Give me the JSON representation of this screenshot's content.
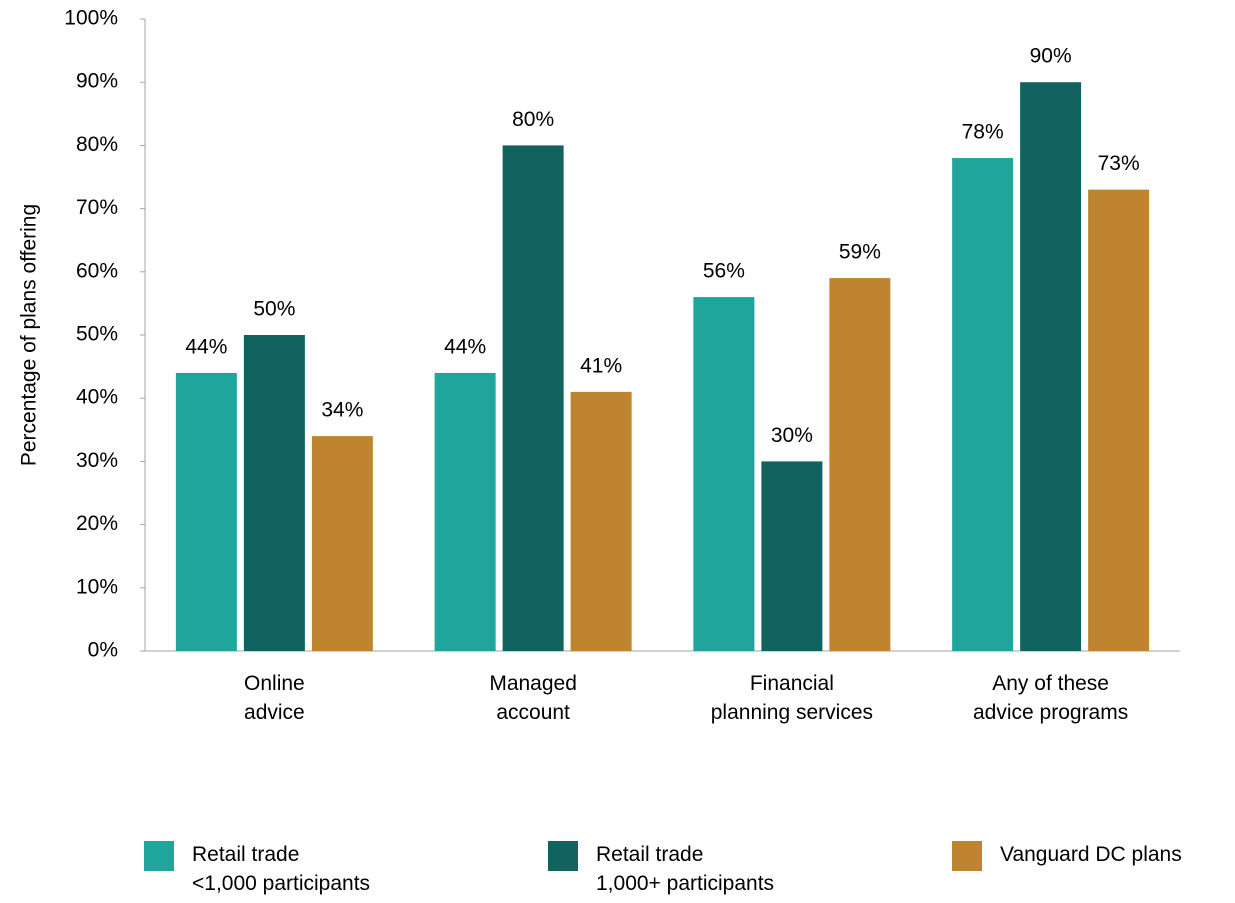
{
  "chart_data": {
    "type": "bar",
    "y_label": "Percentage of plans offering",
    "categories": [
      "Online\nadvice",
      "Managed\naccount",
      "Financial\nplanning services",
      "Any of these\nadvice programs"
    ],
    "series": [
      {
        "name": "Retail trade\n<1,000 participants",
        "color": "#1fa59c",
        "values": [
          44,
          44,
          56,
          78
        ],
        "value_labels": [
          "44%",
          "44%",
          "56%",
          "78%"
        ]
      },
      {
        "name": "Retail trade\n1,000+ participants",
        "color": "#12635f",
        "values": [
          50,
          80,
          30,
          90
        ],
        "value_labels": [
          "50%",
          "80%",
          "30%",
          "90%"
        ]
      },
      {
        "name": "Vanguard DC plans",
        "color": "#bf8430",
        "values": [
          34,
          41,
          59,
          73
        ],
        "value_labels": [
          "34%",
          "41%",
          "59%",
          "73%"
        ]
      }
    ],
    "ylim": [
      0,
      100
    ],
    "yticks": [
      {
        "value": 0,
        "label": "0%"
      },
      {
        "value": 10,
        "label": "10%"
      },
      {
        "value": 20,
        "label": "20%"
      },
      {
        "value": 30,
        "label": "30%"
      },
      {
        "value": 40,
        "label": "40%"
      },
      {
        "value": 50,
        "label": "50%"
      },
      {
        "value": 60,
        "label": "60%"
      },
      {
        "value": 70,
        "label": "70%"
      },
      {
        "value": 80,
        "label": "80%"
      },
      {
        "value": 90,
        "label": "90%"
      },
      {
        "value": 100,
        "label": "100%"
      }
    ],
    "grid": false,
    "legend": "bottom"
  }
}
